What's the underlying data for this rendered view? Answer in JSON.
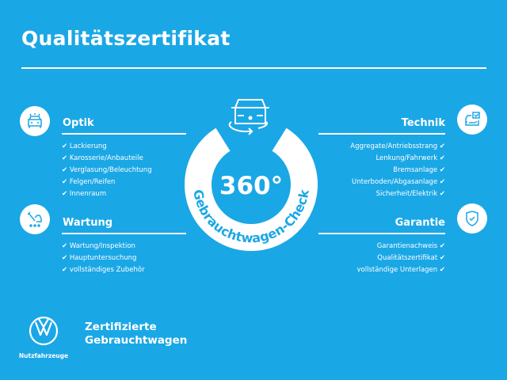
{
  "title": "Qualitätszertifikat",
  "colors": {
    "background": "#1aa7e6",
    "foreground": "#ffffff"
  },
  "check_glyph": "✔",
  "center": {
    "value": "360°",
    "caption": "Gebrauchtwagen-Check",
    "icon": "car-rotate-icon"
  },
  "sections": {
    "optik": {
      "header": "Optik",
      "icon": "car-lights-icon",
      "items": [
        "Lackierung",
        "Karosserie/Anbauteile",
        "Verglasung/Beleuchtung",
        "Felgen/Reifen",
        "Innenraum"
      ]
    },
    "wartung": {
      "header": "Wartung",
      "icon": "tools-icon",
      "items": [
        "Wartung/Inspektion",
        "Hauptuntersuchung",
        "vollständiges Zubehör"
      ]
    },
    "technik": {
      "header": "Technik",
      "icon": "car-checklist-icon",
      "items": [
        "Aggregate/Antriebsstrang",
        "Lenkung/Fahrwerk",
        "Bremsanlage",
        "Unterboden/Abgasanlage",
        "Sicherheit/Elektrik"
      ]
    },
    "garantie": {
      "header": "Garantie",
      "icon": "shield-check-icon",
      "items": [
        "Garantienachweis",
        "Qualitätszertifikat",
        "vollständige Unterlagen"
      ]
    }
  },
  "footer": {
    "logo_text": "Nutzfahrzeuge",
    "brand_line1": "Zertifizierte",
    "brand_line2": "Gebrauchtwagen"
  }
}
